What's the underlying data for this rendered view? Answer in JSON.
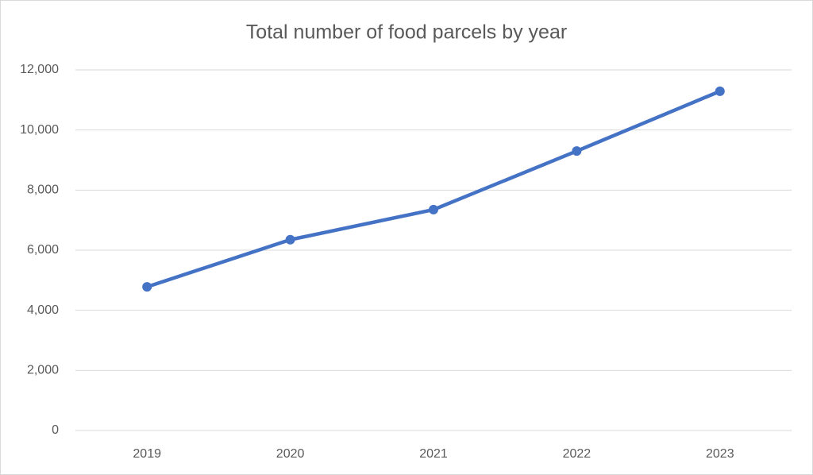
{
  "chart_data": {
    "type": "line",
    "title": "Total number of food parcels by year",
    "categories": [
      "2019",
      "2020",
      "2021",
      "2022",
      "2023"
    ],
    "values": [
      4780,
      6350,
      7350,
      9300,
      11290
    ],
    "color": "#4472c4",
    "ylim": [
      0,
      12000
    ],
    "yticks": [
      0,
      {
        "value": 2000,
        "label": "2,000"
      },
      {
        "value": 4000,
        "label": "4,000"
      },
      {
        "value": 6000,
        "label": "6,000"
      },
      {
        "value": 8000,
        "label": "8,000"
      },
      {
        "value": 10000,
        "label": "10,000"
      },
      {
        "value": 12000,
        "label": "12,000"
      }
    ],
    "grid": true
  }
}
